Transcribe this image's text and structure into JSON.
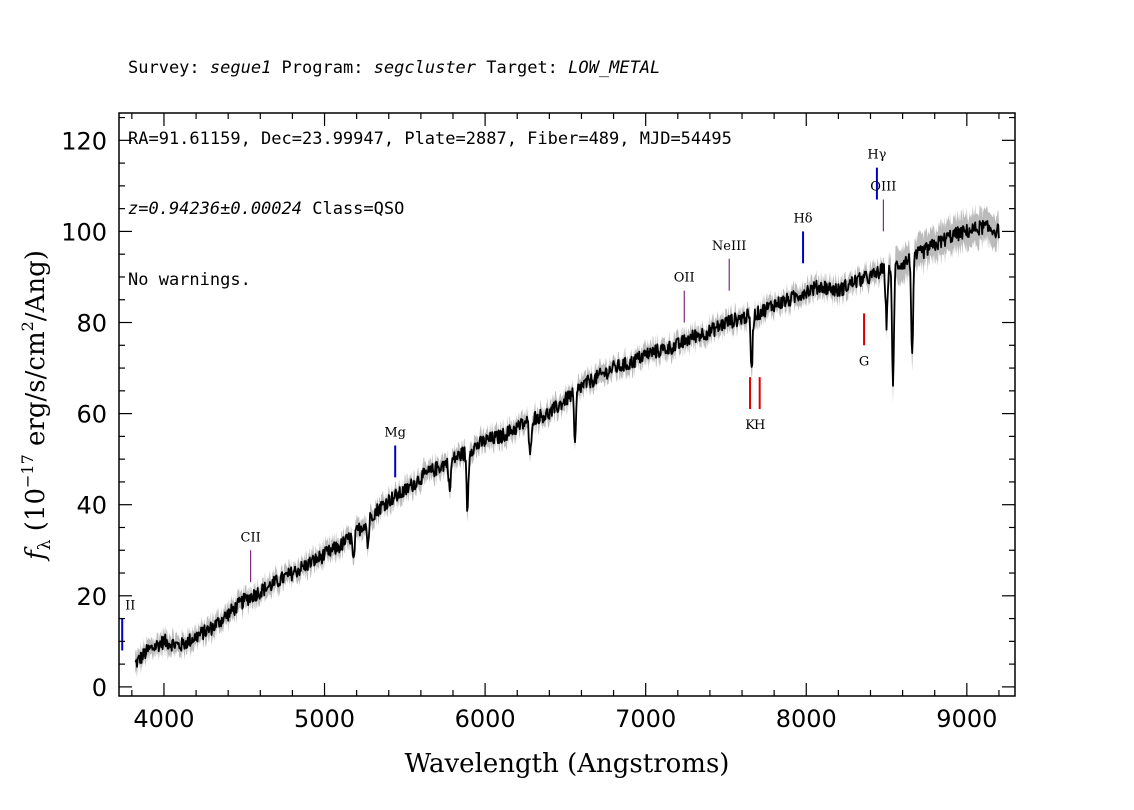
{
  "header": {
    "survey_label": "Survey: ",
    "survey": "segue1",
    "program_label": " Program: ",
    "program": "segcluster",
    "target_label": " Target: ",
    "target": "LOW_METAL",
    "line2": "RA=91.61159, Dec=23.99947, Plate=2887, Fiber=489, MJD=54495",
    "redshift": "z=0.94236±0.00024",
    "class_text": " Class=QSO",
    "warnings": "No warnings."
  },
  "chart_data": {
    "type": "line",
    "title": "",
    "xlabel": "Wavelength (Angstroms)",
    "ylabel_prefix": "f",
    "ylabel_sub": "λ",
    "ylabel_unit_a": " (10",
    "ylabel_exp": "−17",
    "ylabel_unit_b": " erg/s/cm",
    "ylabel_exp2": "2",
    "ylabel_unit_c": "/Ang)",
    "xlim": [
      3720,
      9300
    ],
    "ylim": [
      -2,
      126
    ],
    "x_ticks": [
      4000,
      5000,
      6000,
      7000,
      8000,
      9000
    ],
    "x_tick_labels": [
      "4000",
      "5000",
      "6000",
      "7000",
      "8000",
      "9000"
    ],
    "y_ticks": [
      0,
      20,
      40,
      60,
      80,
      100,
      120
    ],
    "y_tick_labels": [
      "0",
      "20",
      "40",
      "60",
      "80",
      "100",
      "120"
    ],
    "colors": {
      "flux": "#000000",
      "error_band": "#bbbbbb",
      "emission": "#0000cc",
      "absorption": "#dd0000",
      "sky_line": "#660066"
    },
    "series": [
      {
        "role": "flux",
        "x": [
          3820,
          3900,
          4000,
          4100,
          4200,
          4300,
          4400,
          4500,
          4600,
          4700,
          4800,
          4900,
          5000,
          5100,
          5200,
          5300,
          5400,
          5500,
          5600,
          5700,
          5800,
          5900,
          6000,
          6100,
          6200,
          6300,
          6400,
          6500,
          6600,
          6700,
          6800,
          6900,
          7000,
          7100,
          7200,
          7300,
          7400,
          7500,
          7600,
          7700,
          7800,
          7900,
          8000,
          8100,
          8200,
          8300,
          8400,
          8500,
          8600,
          8700,
          8800,
          8900,
          9000,
          9100,
          9200
        ],
        "y": [
          5,
          8,
          10,
          9,
          11,
          13,
          16,
          19,
          21,
          23,
          25,
          27,
          29,
          31,
          34,
          38,
          41,
          43,
          46,
          48,
          50,
          52,
          54,
          55,
          57,
          59,
          60,
          63,
          66,
          68,
          70,
          71,
          73,
          74,
          75,
          77,
          78,
          80,
          81,
          82,
          84,
          85,
          87,
          88,
          87,
          89,
          90,
          92,
          93,
          95,
          97,
          99,
          100,
          101,
          100
        ]
      }
    ],
    "dips": [
      {
        "x": 5180,
        "y": 27
      },
      {
        "x": 5270,
        "y": 31
      },
      {
        "x": 5780,
        "y": 43
      },
      {
        "x": 5890,
        "y": 39
      },
      {
        "x": 6280,
        "y": 50
      },
      {
        "x": 6560,
        "y": 53
      },
      {
        "x": 7660,
        "y": 70
      },
      {
        "x": 8500,
        "y": 80
      },
      {
        "x": 8540,
        "y": 66
      },
      {
        "x": 8660,
        "y": 73
      }
    ],
    "annotations": [
      {
        "label": "II",
        "x": 3740,
        "y1": 8,
        "y2": 15,
        "color": "#0000cc",
        "side": "above"
      },
      {
        "label": "CII",
        "x": 4540,
        "y1": 23,
        "y2": 30,
        "color": "#660066",
        "side": "above"
      },
      {
        "label": "Mg",
        "x": 5440,
        "y1": 46,
        "y2": 53,
        "color": "#0000cc",
        "side": "above"
      },
      {
        "label": "OII",
        "x": 7240,
        "y1": 80,
        "y2": 87,
        "color": "#660066",
        "side": "above"
      },
      {
        "label": "NeIII",
        "x": 7520,
        "y1": 87,
        "y2": 94,
        "color": "#660066",
        "side": "above"
      },
      {
        "label": "Hδ",
        "x": 7980,
        "y1": 93,
        "y2": 100,
        "color": "#0000cc",
        "side": "above"
      },
      {
        "label": "Hγ",
        "x": 8440,
        "y1": 107,
        "y2": 114,
        "color": "#0000cc",
        "side": "above"
      },
      {
        "label": "OIII",
        "x": 8480,
        "y1": 100,
        "y2": 107,
        "color": "#660066",
        "side": "above"
      },
      {
        "label": "K",
        "x": 7650,
        "y1": 61,
        "y2": 68,
        "color": "#dd0000",
        "side": "below"
      },
      {
        "label": "H",
        "x": 7710,
        "y1": 61,
        "y2": 68,
        "color": "#dd0000",
        "side": "below"
      },
      {
        "label": "G",
        "x": 8360,
        "y1": 75,
        "y2": 82,
        "color": "#dd0000",
        "side": "below"
      }
    ]
  }
}
